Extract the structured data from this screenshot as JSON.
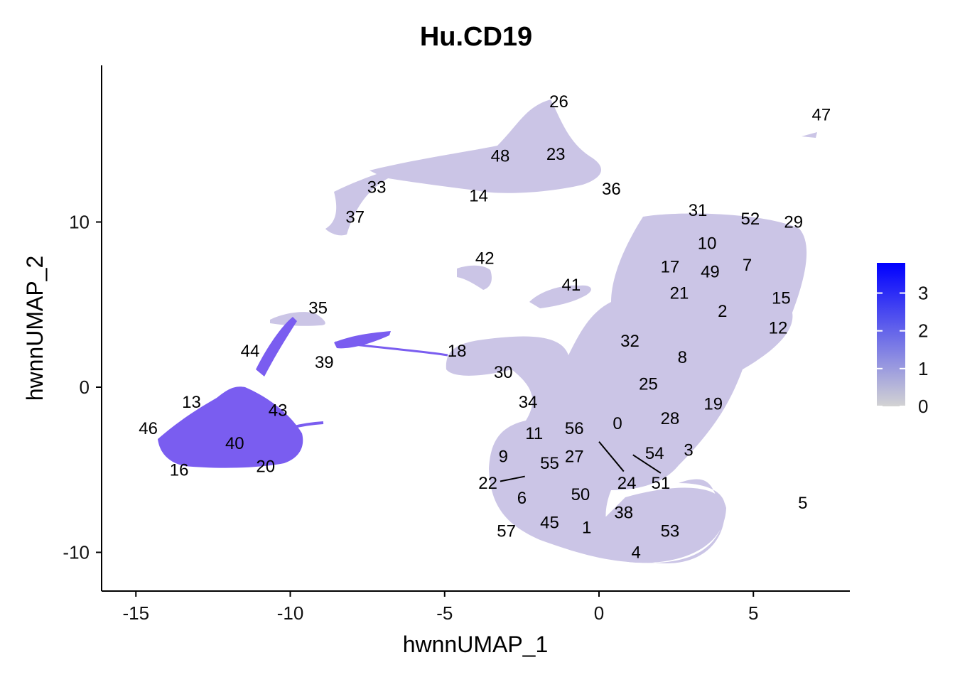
{
  "chart_data": {
    "type": "scatter",
    "title": "Hu.CD19",
    "xlabel": "hwnnUMAP_1",
    "ylabel": "hwnnUMAP_2",
    "xlim": [
      -16.0,
      8.0
    ],
    "ylim": [
      -12.5,
      19.5
    ],
    "xticks": [
      -15,
      -10,
      -5,
      0,
      5
    ],
    "yticks": [
      -10,
      0,
      10
    ],
    "xtick_labels": [
      "-15",
      "-10",
      "-5",
      "0",
      "5"
    ],
    "ytick_labels": [
      "-10",
      "0",
      "10"
    ],
    "grid": false,
    "legend": "right",
    "colorbar": {
      "min": 0,
      "max": 3.8,
      "ticks": [
        0,
        1,
        2,
        3
      ],
      "tick_labels": [
        "0",
        "1",
        "2",
        "3"
      ],
      "color_low": "#d3d3d3",
      "color_high": "#0000ff"
    },
    "point_color_default": "#cbc5e6",
    "point_color_high": "#7a5df0",
    "clusters": [
      {
        "label": "0",
        "x": 0.6,
        "y": -2.2
      },
      {
        "label": "1",
        "x": -0.4,
        "y": -8.5
      },
      {
        "label": "2",
        "x": 4.0,
        "y": 4.6
      },
      {
        "label": "3",
        "x": 2.9,
        "y": -3.8
      },
      {
        "label": "4",
        "x": 1.2,
        "y": -10.0
      },
      {
        "label": "5",
        "x": 6.6,
        "y": -7.0
      },
      {
        "label": "6",
        "x": -2.5,
        "y": -6.7
      },
      {
        "label": "7",
        "x": 4.8,
        "y": 7.4
      },
      {
        "label": "8",
        "x": 2.7,
        "y": 1.8
      },
      {
        "label": "9",
        "x": -3.1,
        "y": -4.2
      },
      {
        "label": "10",
        "x": 3.5,
        "y": 8.7
      },
      {
        "label": "11",
        "x": -2.1,
        "y": -2.8
      },
      {
        "label": "12",
        "x": 5.8,
        "y": 3.6
      },
      {
        "label": "13",
        "x": -13.2,
        "y": -0.9
      },
      {
        "label": "14",
        "x": -3.9,
        "y": 11.6
      },
      {
        "label": "15",
        "x": 5.9,
        "y": 5.4
      },
      {
        "label": "16",
        "x": -13.6,
        "y": -5.0
      },
      {
        "label": "17",
        "x": 2.3,
        "y": 7.3
      },
      {
        "label": "18",
        "x": -4.6,
        "y": 2.2
      },
      {
        "label": "19",
        "x": 3.7,
        "y": -1.0
      },
      {
        "label": "20",
        "x": -10.8,
        "y": -4.8
      },
      {
        "label": "21",
        "x": 2.6,
        "y": 5.7
      },
      {
        "label": "22",
        "x": -3.6,
        "y": -5.8
      },
      {
        "label": "23",
        "x": -1.4,
        "y": 14.1
      },
      {
        "label": "24",
        "x": 0.9,
        "y": -5.8
      },
      {
        "label": "25",
        "x": 1.6,
        "y": 0.2
      },
      {
        "label": "26",
        "x": -1.3,
        "y": 17.3
      },
      {
        "label": "27",
        "x": -0.8,
        "y": -4.2
      },
      {
        "label": "28",
        "x": 2.3,
        "y": -1.9
      },
      {
        "label": "29",
        "x": 6.3,
        "y": 10.0
      },
      {
        "label": "30",
        "x": -3.1,
        "y": 0.9
      },
      {
        "label": "31",
        "x": 3.2,
        "y": 10.7
      },
      {
        "label": "32",
        "x": 1.0,
        "y": 2.8
      },
      {
        "label": "33",
        "x": -7.2,
        "y": 12.1
      },
      {
        "label": "34",
        "x": -2.3,
        "y": -0.9
      },
      {
        "label": "35",
        "x": -9.1,
        "y": 4.8
      },
      {
        "label": "36",
        "x": 0.4,
        "y": 12.0
      },
      {
        "label": "37",
        "x": -7.9,
        "y": 10.3
      },
      {
        "label": "38",
        "x": 0.8,
        "y": -7.6
      },
      {
        "label": "39",
        "x": -8.9,
        "y": 1.5
      },
      {
        "label": "40",
        "x": -11.8,
        "y": -3.4
      },
      {
        "label": "41",
        "x": -0.9,
        "y": 6.2
      },
      {
        "label": "42",
        "x": -3.7,
        "y": 7.8
      },
      {
        "label": "43",
        "x": -10.4,
        "y": -1.4
      },
      {
        "label": "44",
        "x": -11.3,
        "y": 2.2
      },
      {
        "label": "45",
        "x": -1.6,
        "y": -8.2
      },
      {
        "label": "46",
        "x": -14.6,
        "y": -2.5
      },
      {
        "label": "47",
        "x": 7.2,
        "y": 16.5
      },
      {
        "label": "48",
        "x": -3.2,
        "y": 14.0
      },
      {
        "label": "49",
        "x": 3.6,
        "y": 7.0
      },
      {
        "label": "50",
        "x": -0.6,
        "y": -6.5
      },
      {
        "label": "51",
        "x": 2.0,
        "y": -5.8
      },
      {
        "label": "52",
        "x": 4.9,
        "y": 10.2
      },
      {
        "label": "53",
        "x": 2.3,
        "y": -8.7
      },
      {
        "label": "54",
        "x": 1.8,
        "y": -4.0
      },
      {
        "label": "55",
        "x": -1.6,
        "y": -4.6
      },
      {
        "label": "56",
        "x": -0.8,
        "y": -2.5
      },
      {
        "label": "57",
        "x": -3.0,
        "y": -8.7
      }
    ],
    "leader_lines": [
      {
        "x1": -2.4,
        "y1": -5.4,
        "x2": -3.2,
        "y2": -5.7
      },
      {
        "x1": 0.0,
        "y1": -3.3,
        "x2": 0.8,
        "y2": -5.1
      },
      {
        "x1": 1.1,
        "y1": -4.1,
        "x2": 2.0,
        "y2": -5.2
      }
    ]
  }
}
